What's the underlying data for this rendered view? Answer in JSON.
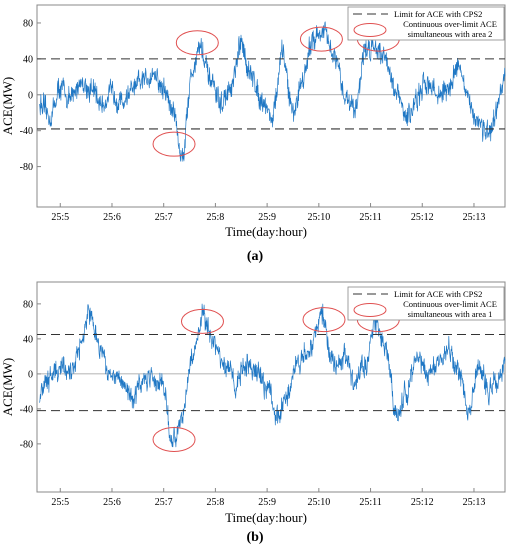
{
  "figure": {
    "panels": [
      {
        "label": "(a)",
        "xlabel": "Time(day:hour)",
        "ylabel": "ACE(MW)",
        "legend": [
          {
            "name": "Limit for ACE with CPS2",
            "style": "dashed-line"
          },
          {
            "name": "Continuous over-limit ACE simultaneous with area 2",
            "lines": [
              "Continuous over-limit ACE",
              "simultaneous with area 2"
            ],
            "style": "red-ellipse"
          }
        ]
      },
      {
        "label": "(b)",
        "xlabel": "Time(day:hour)",
        "ylabel": "ACE(MW)",
        "legend": [
          {
            "name": "Limit for ACE with CPS2",
            "style": "dashed-line"
          },
          {
            "name": "Continuous over-limit ACE simultaneous with area 1",
            "lines": [
              "Continuous over-limit ACE",
              "simultaneous with area 1"
            ],
            "style": "red-ellipse"
          }
        ]
      }
    ]
  },
  "colors": {
    "series": "#1f77c4",
    "limit": "#333333",
    "ellipse": "#e05050",
    "frame": "#888888",
    "zero": "#999999"
  },
  "chart_data": [
    {
      "type": "line",
      "title": "",
      "xlabel": "Time(day:hour)",
      "ylabel": "ACE(MW)",
      "x_ticks": [
        "25:5",
        "25:6",
        "25:7",
        "25:8",
        "25:9",
        "25:10",
        "25:11",
        "25:12",
        "25:13"
      ],
      "xlim": [
        "25:4.55",
        "25:13.6"
      ],
      "ylim": [
        -125,
        100
      ],
      "y_ticks": [
        -80,
        -40,
        0,
        40,
        80
      ],
      "limits": [
        40,
        -38
      ],
      "grid": false,
      "legend_position": "top-right",
      "series": [
        {
          "x": [
            "25:4.6",
            "25:4.8",
            "25:5.0",
            "25:5.2",
            "25:5.4",
            "25:5.6",
            "25:5.8",
            "25:6.0",
            "25:6.2",
            "25:6.4",
            "25:6.6",
            "25:6.8",
            "25:7.0",
            "25:7.2",
            "25:7.35",
            "25:7.55",
            "25:7.7",
            "25:7.9",
            "25:8.1",
            "25:8.3",
            "25:8.5",
            "25:8.7",
            "25:8.9",
            "25:9.1",
            "25:9.3",
            "25:9.5",
            "25:9.7",
            "25:9.9",
            "25:10.1",
            "25:10.3",
            "25:10.5",
            "25:10.7",
            "25:10.9",
            "25:11.1",
            "25:11.3",
            "25:11.5",
            "25:11.7",
            "25:11.9",
            "25:12.1",
            "25:12.3",
            "25:12.5",
            "25:12.7",
            "25:12.9",
            "25:13.1",
            "25:13.3",
            "25:13.6"
          ],
          "values": [
            -10,
            -25,
            8,
            -5,
            15,
            5,
            -10,
            2,
            -8,
            5,
            15,
            25,
            5,
            -20,
            -70,
            25,
            55,
            15,
            -10,
            5,
            55,
            20,
            -5,
            -25,
            45,
            -20,
            20,
            65,
            70,
            40,
            0,
            -15,
            50,
            55,
            40,
            0,
            -25,
            -5,
            15,
            0,
            5,
            35,
            -10,
            -30,
            -45,
            15
          ]
        }
      ],
      "highlights": [
        {
          "x": "25:7.2",
          "y": -55
        },
        {
          "x": "25:7.65",
          "y": 58
        },
        {
          "x": "25:10.05",
          "y": 62
        },
        {
          "x": "25:11.15",
          "y": 62
        }
      ]
    },
    {
      "type": "line",
      "title": "",
      "xlabel": "Time(day:hour)",
      "ylabel": "ACE(MW)",
      "x_ticks": [
        "25:5",
        "25:6",
        "25:7",
        "25:8",
        "25:9",
        "25:10",
        "25:11",
        "25:12",
        "25:13"
      ],
      "xlim": [
        "25:4.55",
        "25:13.6"
      ],
      "ylim": [
        -135,
        105
      ],
      "y_ticks": [
        -80,
        -40,
        0,
        40,
        80
      ],
      "limits": [
        45,
        -42
      ],
      "grid": false,
      "legend_position": "top-right",
      "series": [
        {
          "x": [
            "25:4.6",
            "25:4.8",
            "25:5.0",
            "25:5.2",
            "25:5.4",
            "25:5.55",
            "25:5.75",
            "25:6.0",
            "25:6.2",
            "25:6.4",
            "25:6.6",
            "25:6.8",
            "25:7.0",
            "25:7.15",
            "25:7.35",
            "25:7.55",
            "25:7.75",
            "25:7.95",
            "25:8.2",
            "25:8.4",
            "25:8.6",
            "25:8.8",
            "25:9.0",
            "25:9.2",
            "25:9.4",
            "25:9.6",
            "25:9.8",
            "25:10.05",
            "25:10.3",
            "25:10.5",
            "25:10.7",
            "25:10.9",
            "25:11.1",
            "25:11.3",
            "25:11.5",
            "25:11.7",
            "25:11.9",
            "25:12.1",
            "25:12.3",
            "25:12.5",
            "25:12.7",
            "25:12.9",
            "25:13.1",
            "25:13.3",
            "25:13.6"
          ],
          "values": [
            -20,
            -5,
            10,
            0,
            35,
            75,
            30,
            0,
            -10,
            -25,
            -10,
            -5,
            -15,
            -80,
            -50,
            20,
            65,
            35,
            10,
            -10,
            10,
            0,
            -15,
            -50,
            -20,
            15,
            25,
            65,
            10,
            20,
            -10,
            10,
            60,
            30,
            -50,
            -20,
            20,
            5,
            10,
            25,
            5,
            -40,
            10,
            -20,
            10
          ]
        }
      ],
      "highlights": [
        {
          "x": "25:7.2",
          "y": -75
        },
        {
          "x": "25:7.75",
          "y": 60
        },
        {
          "x": "25:10.1",
          "y": 62
        },
        {
          "x": "25:11.15",
          "y": 62
        }
      ]
    }
  ]
}
